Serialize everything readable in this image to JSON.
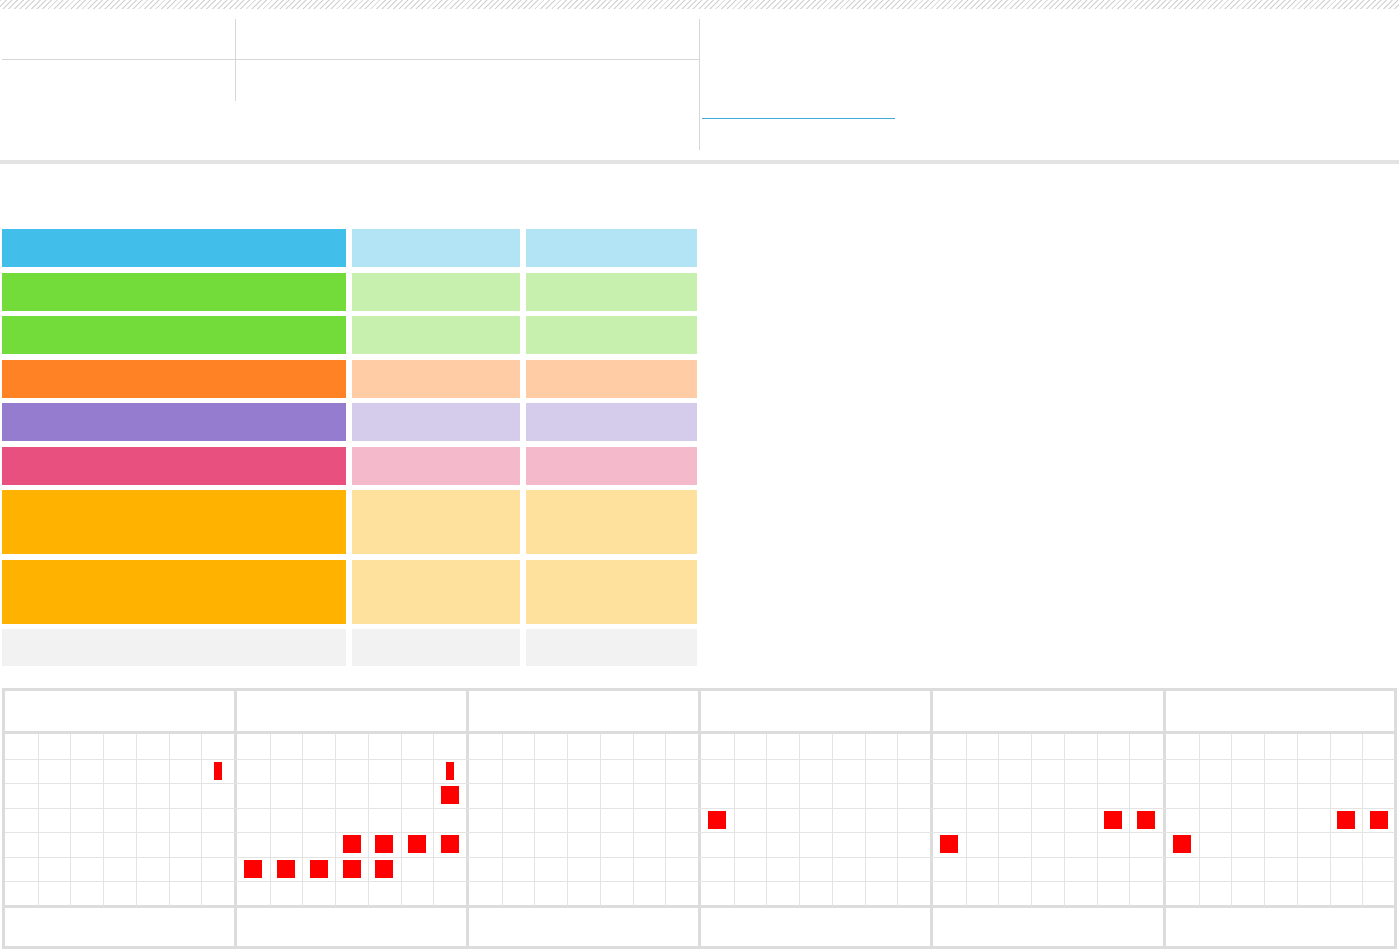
{
  "header": {
    "top_left_label": "",
    "top_mid_label": "",
    "link_text": ""
  },
  "colors": {
    "blue": "#41bfea",
    "blue_light": "#b3e4f5",
    "green": "#73db3a",
    "green_light": "#c7f0af",
    "orange": "#ff8324",
    "orange_light": "#ffcca5",
    "purple": "#967ccf",
    "purple_light": "#d5cbeb",
    "pink": "#e8507f",
    "pink_light": "#f4b9cb",
    "amber": "#ffb300",
    "amber_light": "#fde19d",
    "gray_light": "#f2f2f2",
    "mark": "#ff0000"
  },
  "table": {
    "rows": [
      {
        "label": "",
        "col2": "",
        "col3": "",
        "color": "blue"
      },
      {
        "label": "",
        "col2": "",
        "col3": "",
        "color": "green"
      },
      {
        "label": "",
        "col2": "",
        "col3": "",
        "color": "green"
      },
      {
        "label": "",
        "col2": "",
        "col3": "",
        "color": "orange"
      },
      {
        "label": "",
        "col2": "",
        "col3": "",
        "color": "purple"
      },
      {
        "label": "",
        "col2": "",
        "col3": "",
        "color": "pink"
      },
      {
        "label": "",
        "col2": "",
        "col3": "",
        "color": "amber"
      },
      {
        "label": "",
        "col2": "",
        "col3": "",
        "color": "amber"
      },
      {
        "label": "",
        "col2": "",
        "col3": "",
        "color": "gray"
      }
    ]
  },
  "schedule": {
    "columns": [
      {
        "header": "",
        "footer": ""
      },
      {
        "header": "",
        "footer": ""
      },
      {
        "header": "",
        "footer": ""
      },
      {
        "header": "",
        "footer": ""
      },
      {
        "header": "",
        "footer": ""
      },
      {
        "header": "",
        "footer": ""
      }
    ],
    "marks": [
      {
        "col": 0,
        "slot": 6,
        "row": 1,
        "size": "small"
      },
      {
        "col": 1,
        "slot": 6,
        "row": 1,
        "size": "small"
      },
      {
        "col": 1,
        "slot": 6,
        "row": 2,
        "size": "full"
      },
      {
        "col": 1,
        "slot": 3,
        "row": 4,
        "size": "full"
      },
      {
        "col": 1,
        "slot": 4,
        "row": 4,
        "size": "full"
      },
      {
        "col": 1,
        "slot": 5,
        "row": 4,
        "size": "full"
      },
      {
        "col": 1,
        "slot": 6,
        "row": 4,
        "size": "full"
      },
      {
        "col": 1,
        "slot": 0,
        "row": 5,
        "size": "full"
      },
      {
        "col": 1,
        "slot": 1,
        "row": 5,
        "size": "full"
      },
      {
        "col": 1,
        "slot": 2,
        "row": 5,
        "size": "full"
      },
      {
        "col": 1,
        "slot": 3,
        "row": 5,
        "size": "full"
      },
      {
        "col": 1,
        "slot": 4,
        "row": 5,
        "size": "full"
      },
      {
        "col": 3,
        "slot": 0,
        "row": 3,
        "size": "full"
      },
      {
        "col": 4,
        "slot": 5,
        "row": 3,
        "size": "full"
      },
      {
        "col": 4,
        "slot": 6,
        "row": 3,
        "size": "full"
      },
      {
        "col": 4,
        "slot": 0,
        "row": 4,
        "size": "full"
      },
      {
        "col": 5,
        "slot": 5,
        "row": 3,
        "size": "full"
      },
      {
        "col": 5,
        "slot": 6,
        "row": 3,
        "size": "full"
      },
      {
        "col": 5,
        "slot": 0,
        "row": 4,
        "size": "full"
      }
    ]
  }
}
